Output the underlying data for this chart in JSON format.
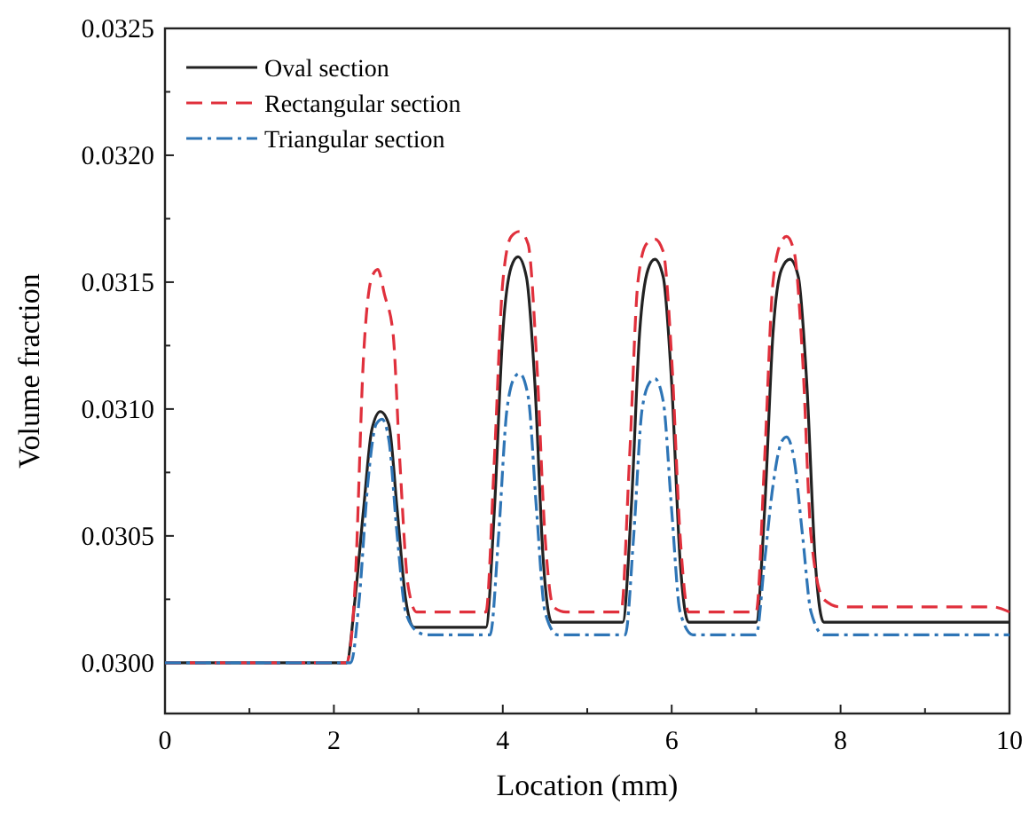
{
  "chart_data": {
    "type": "line",
    "xlabel": "Location (mm)",
    "ylabel": "Volume fraction",
    "xlim": [
      0,
      10
    ],
    "ylim": [
      0.0298,
      0.0325
    ],
    "xticks": [
      0,
      {
        "value": 1,
        "label": null
      },
      2,
      {
        "value": 3,
        "label": null
      },
      4,
      {
        "value": 5,
        "label": null
      },
      6,
      {
        "value": 7,
        "label": null
      },
      8,
      {
        "value": 9,
        "label": null
      },
      10
    ],
    "yticks": [
      {
        "value": 0.03,
        "label": "0.0300"
      },
      {
        "value": 0.03025,
        "label": null
      },
      {
        "value": 0.0305,
        "label": "0.0305"
      },
      {
        "value": 0.03075,
        "label": null
      },
      {
        "value": 0.031,
        "label": "0.0310"
      },
      {
        "value": 0.03125,
        "label": null
      },
      {
        "value": 0.0315,
        "label": "0.0315"
      },
      {
        "value": 0.03175,
        "label": null
      },
      {
        "value": 0.032,
        "label": "0.0320"
      },
      {
        "value": 0.03225,
        "label": null
      },
      {
        "value": 0.0325,
        "label": "0.0325"
      }
    ],
    "legend": "top left",
    "grid": false,
    "series": [
      {
        "name": "Oval section",
        "color": "#222222",
        "line_style": "solid",
        "x": [
          0,
          2.15,
          2.25,
          2.35,
          2.45,
          2.55,
          2.65,
          2.75,
          2.85,
          2.95,
          3.8,
          3.9,
          4.0,
          4.1,
          4.18,
          4.28,
          4.38,
          4.48,
          4.58,
          5.42,
          5.52,
          5.62,
          5.72,
          5.8,
          5.9,
          6.0,
          6.1,
          6.2,
          7.0,
          7.1,
          7.2,
          7.3,
          7.4,
          7.5,
          7.6,
          7.7,
          7.8,
          10
        ],
        "values": [
          0.03,
          0.03,
          0.03025,
          0.0306,
          0.03092,
          0.03099,
          0.03094,
          0.0306,
          0.03025,
          0.03014,
          0.03014,
          0.0306,
          0.0313,
          0.03156,
          0.0316,
          0.03152,
          0.0311,
          0.0304,
          0.03016,
          0.03016,
          0.0306,
          0.0313,
          0.03155,
          0.03159,
          0.03152,
          0.0311,
          0.0304,
          0.03016,
          0.03016,
          0.0306,
          0.0313,
          0.03155,
          0.03159,
          0.03152,
          0.0311,
          0.0304,
          0.03016,
          0.03016
        ]
      },
      {
        "name": "Rectangular section",
        "color": "#e0303c",
        "line_style": "dashed",
        "x": [
          0,
          2.15,
          2.25,
          2.35,
          2.45,
          2.52,
          2.6,
          2.7,
          2.78,
          2.88,
          2.98,
          3.8,
          3.9,
          4.0,
          4.1,
          4.2,
          4.3,
          4.4,
          4.5,
          4.6,
          4.75,
          5.4,
          5.5,
          5.6,
          5.7,
          5.8,
          5.9,
          6.0,
          6.1,
          6.2,
          7.0,
          7.1,
          7.2,
          7.3,
          7.36,
          7.45,
          7.55,
          7.65,
          7.8,
          8.0,
          9.8,
          10
        ],
        "values": [
          0.03,
          0.03,
          0.0303,
          0.0312,
          0.03152,
          0.03155,
          0.03145,
          0.0313,
          0.0308,
          0.0303,
          0.0302,
          0.0302,
          0.0308,
          0.0315,
          0.03168,
          0.0317,
          0.03165,
          0.0312,
          0.0305,
          0.03022,
          0.0302,
          0.0302,
          0.0308,
          0.0315,
          0.03165,
          0.03167,
          0.03162,
          0.0312,
          0.0305,
          0.0302,
          0.0302,
          0.0308,
          0.0315,
          0.03166,
          0.03168,
          0.03162,
          0.0312,
          0.0305,
          0.03025,
          0.03022,
          0.03022,
          0.0302
        ]
      },
      {
        "name": "Triangular section",
        "color": "#2e75b6",
        "line_style": "dashdot",
        "x": [
          0,
          2.2,
          2.3,
          2.4,
          2.5,
          2.57,
          2.65,
          2.75,
          2.85,
          3.0,
          3.1,
          3.85,
          3.95,
          4.05,
          4.15,
          4.2,
          4.3,
          4.4,
          4.5,
          4.65,
          5.45,
          5.55,
          5.65,
          5.75,
          5.8,
          5.9,
          6.0,
          6.1,
          6.25,
          7.0,
          7.1,
          7.2,
          7.3,
          7.36,
          7.45,
          7.55,
          7.65,
          7.8,
          10
        ],
        "values": [
          0.03,
          0.03,
          0.03025,
          0.0307,
          0.03094,
          0.03096,
          0.03088,
          0.0305,
          0.0302,
          0.03012,
          0.03011,
          0.03011,
          0.0305,
          0.031,
          0.03113,
          0.03114,
          0.03105,
          0.0306,
          0.0302,
          0.03011,
          0.03011,
          0.0305,
          0.031,
          0.03111,
          0.03112,
          0.03103,
          0.0306,
          0.0302,
          0.03011,
          0.03011,
          0.0304,
          0.0307,
          0.03087,
          0.03089,
          0.0308,
          0.0305,
          0.0302,
          0.03011,
          0.03011
        ]
      }
    ]
  }
}
